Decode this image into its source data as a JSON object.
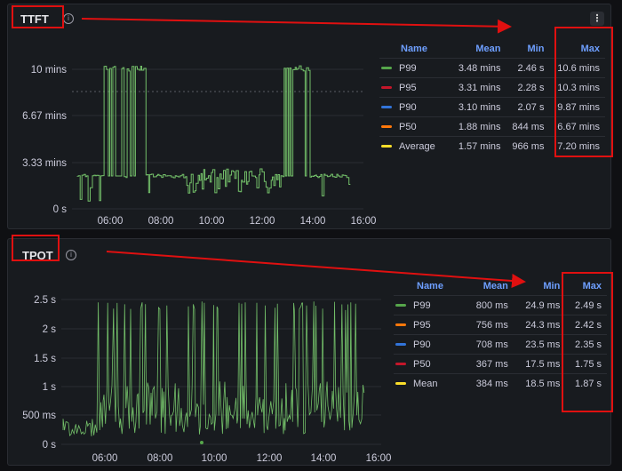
{
  "panels": [
    {
      "title": "TTFT",
      "y_ticks": [
        "10 mins",
        "6.67 mins",
        "3.33 mins",
        "0 s"
      ],
      "x_ticks": [
        "06:00",
        "08:00",
        "10:00",
        "12:00",
        "14:00",
        "16:00"
      ],
      "legend": {
        "headers": {
          "name": "Name",
          "mean": "Mean",
          "min": "Min",
          "max": "Max"
        },
        "rows": [
          {
            "name": "P99",
            "mean": "3.48 mins",
            "min": "2.46 s",
            "max": "10.6 mins",
            "color": "#56a64b"
          },
          {
            "name": "P95",
            "mean": "3.31 mins",
            "min": "2.28 s",
            "max": "10.3 mins",
            "color": "#c4162a"
          },
          {
            "name": "P90",
            "mean": "3.10 mins",
            "min": "2.07 s",
            "max": "9.87 mins",
            "color": "#3274d9"
          },
          {
            "name": "P50",
            "mean": "1.88 mins",
            "min": "844 ms",
            "max": "6.67 mins",
            "color": "#ff780a"
          },
          {
            "name": "Average",
            "mean": "1.57 mins",
            "min": "966 ms",
            "max": "7.20 mins",
            "color": "#fade2a"
          }
        ]
      }
    },
    {
      "title": "TPOT",
      "y_ticks": [
        "2.5 s",
        "2 s",
        "1.5 s",
        "1 s",
        "500 ms",
        "0 s"
      ],
      "x_ticks": [
        "06:00",
        "08:00",
        "10:00",
        "12:00",
        "14:00",
        "16:00"
      ],
      "legend": {
        "headers": {
          "name": "Name",
          "mean": "Mean",
          "min": "Min",
          "max": "Max"
        },
        "rows": [
          {
            "name": "P99",
            "mean": "800 ms",
            "min": "24.9 ms",
            "max": "2.49 s",
            "color": "#56a64b"
          },
          {
            "name": "P95",
            "mean": "756 ms",
            "min": "24.3 ms",
            "max": "2.42 s",
            "color": "#ff780a"
          },
          {
            "name": "P90",
            "mean": "708 ms",
            "min": "23.5 ms",
            "max": "2.35 s",
            "color": "#3274d9"
          },
          {
            "name": "P50",
            "mean": "367 ms",
            "min": "17.5 ms",
            "max": "1.75 s",
            "color": "#c4162a"
          },
          {
            "name": "Mean",
            "mean": "384 ms",
            "min": "18.5 ms",
            "max": "1.87 s",
            "color": "#fade2a"
          }
        ]
      }
    }
  ],
  "menu_icon": "kebab-menu-icon",
  "info_icon": "info-circle-icon",
  "annotation_color": "#e01010"
}
